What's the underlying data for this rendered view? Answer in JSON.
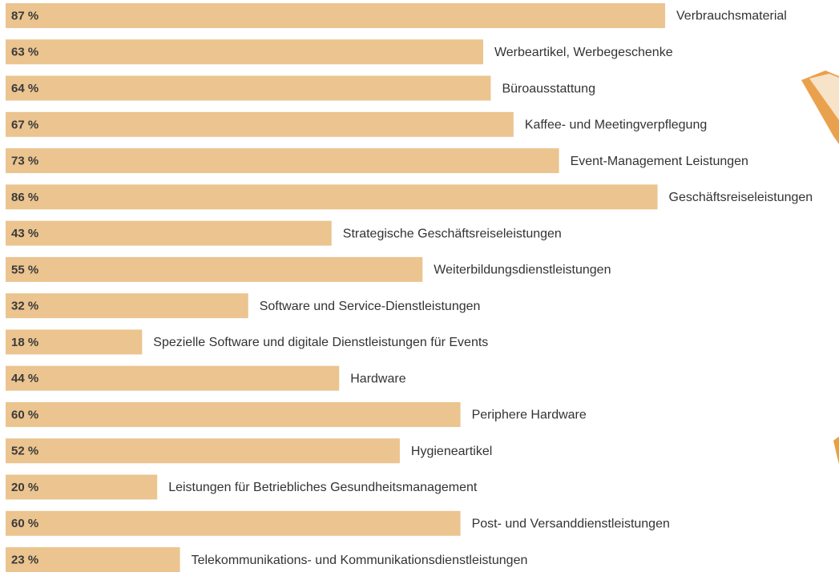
{
  "chart_data": {
    "type": "bar",
    "orientation": "horizontal",
    "color": "#ebc48f",
    "categories": [
      "Verbrauchsmaterial",
      "Werbeartikel, Werbegeschenke",
      "Büroausstattung",
      "Kaffee- und Meetingverpflegung",
      "Event-Management Leistungen",
      "Geschäftsreiseleistungen",
      "Strategische Geschäftsreiseleistungen",
      "Weiterbildungsdienstleistungen",
      "Software und Service-Dienstleistungen",
      "Spezielle Software und digitale Dienstleistungen für Events",
      "Hardware",
      "Periphere Hardware",
      "Hygieneartikel",
      "Leistungen für Betriebliches Gesundheitsmanagement",
      "Post- und Versanddienstleistungen",
      "Telekommunikations- und Kommunikationsdienstleistungen"
    ],
    "values": [
      87,
      63,
      64,
      67,
      73,
      86,
      43,
      55,
      32,
      18,
      44,
      60,
      52,
      20,
      60,
      23
    ],
    "value_labels": [
      "87 %",
      "63 %",
      "64 %",
      "67 %",
      "73 %",
      "86 %",
      "43 %",
      "55 %",
      "32 %",
      "18 %",
      "44 %",
      "60 %",
      "52 %",
      "20 %",
      "60 %",
      "23 %"
    ]
  }
}
